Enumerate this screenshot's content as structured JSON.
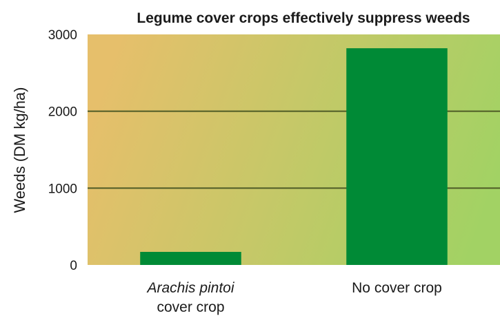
{
  "chart_data": {
    "type": "bar",
    "title": "Legume cover crops effectively suppress weeds",
    "ylabel": "Weeds (DM kg/ha)",
    "xlabel": "",
    "categories": [
      {
        "lines": [
          {
            "text": "Arachis pintoi",
            "italic": true
          },
          {
            "text": "cover crop",
            "italic": false
          }
        ]
      },
      {
        "lines": [
          {
            "text": "No cover crop",
            "italic": false
          }
        ]
      }
    ],
    "values": [
      170,
      2820
    ],
    "ylim": [
      0,
      3000
    ],
    "yticks": [
      0,
      1000,
      2000,
      3000
    ],
    "grid": true,
    "bar_color": "#008a36",
    "background_gradient": [
      "#e6bf6b",
      "#a2d264"
    ],
    "gridline_color": "#4d5a26"
  }
}
